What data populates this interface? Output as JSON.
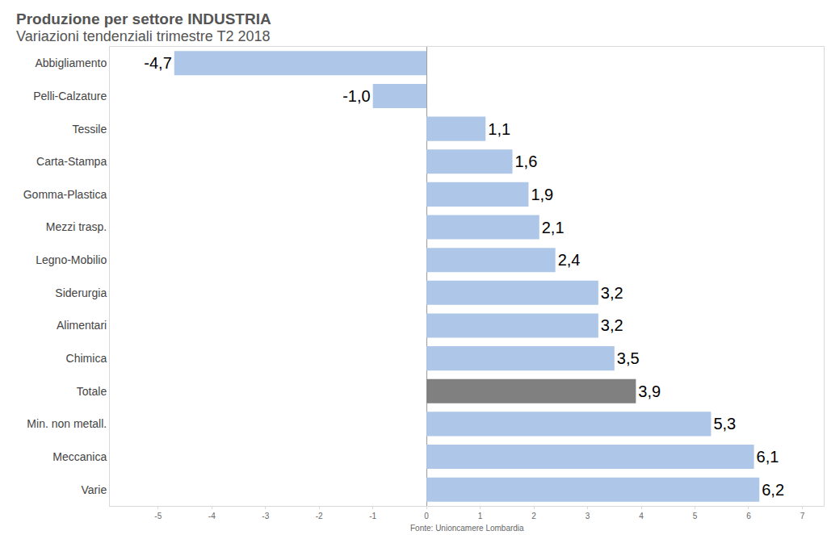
{
  "chart_data": {
    "type": "bar",
    "orientation": "horizontal",
    "title": "Produzione per settore INDUSTRIA",
    "subtitle": "Variazioni tendenziali trimestre T2 2018",
    "source": "Fonte: Unioncamere Lombardia",
    "categories": [
      "Abbigliamento",
      "Pelli-Calzature",
      "Tessile",
      "Carta-Stampa",
      "Gomma-Plastica",
      "Mezzi trasp.",
      "Legno-Mobilio",
      "Siderurgia",
      "Alimentari",
      "Chimica",
      "Totale",
      "Min. non metall.",
      "Meccanica",
      "Varie"
    ],
    "values": [
      -4.7,
      -1.0,
      1.1,
      1.6,
      1.9,
      2.1,
      2.4,
      3.2,
      3.2,
      3.5,
      3.9,
      5.3,
      6.1,
      6.2
    ],
    "value_labels": [
      "-4,7",
      "-1,0",
      "1,1",
      "1,6",
      "1,9",
      "2,1",
      "2,4",
      "3,2",
      "3,2",
      "3,5",
      "3,9",
      "5,3",
      "6,1",
      "6,2"
    ],
    "colors": [
      "#aec7e8",
      "#aec7e8",
      "#aec7e8",
      "#aec7e8",
      "#aec7e8",
      "#aec7e8",
      "#aec7e8",
      "#aec7e8",
      "#aec7e8",
      "#aec7e8",
      "#808080",
      "#aec7e8",
      "#aec7e8",
      "#aec7e8"
    ],
    "xlim": [
      -5.9,
      7.4
    ],
    "xticks": [
      -5,
      -4,
      -3,
      -2,
      -1,
      0,
      1,
      2,
      3,
      4,
      5,
      6,
      7
    ],
    "data_labels": true,
    "grid": false
  }
}
